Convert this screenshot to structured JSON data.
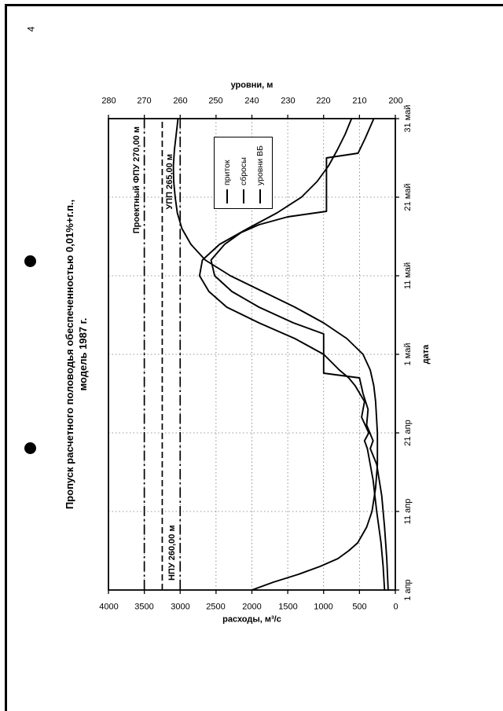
{
  "page": {
    "number": "4"
  },
  "chart": {
    "title_line1": "Пропуск расчетного половодья обеспеченностью 0,01%+г.п.,",
    "title_line2": "модель 1987 г.",
    "left_axis_title": "расходы, м³/с",
    "right_axis_title": "уровни, м",
    "x_axis_title": "дата"
  },
  "chart_data": {
    "type": "line",
    "title": "Пропуск расчетного половодья обеспеченностью 0,01%+г.п., модель 1987 г.",
    "xlabel": "дата",
    "x_ticks": [
      "1 апр",
      "11 апр",
      "21 апр",
      "1 май",
      "11 май",
      "21 май",
      "31 май"
    ],
    "x_tick_days": [
      0,
      10,
      20,
      30,
      40,
      50,
      60
    ],
    "x_range": [
      0,
      60
    ],
    "y_left": {
      "label": "расходы, м³/с",
      "range": [
        0,
        4000
      ],
      "step": 500
    },
    "y_right": {
      "label": "уровни, м",
      "range": [
        200,
        280
      ],
      "step": 10
    },
    "grid": "dotted",
    "legend_position": "inside-right-center",
    "orientation_note": "chart printed rotated 90° on portrait page",
    "reference_lines": [
      {
        "id": "fpu",
        "label": "Проектный ФПУ 270,00 м",
        "level": 270,
        "style": "dashdot",
        "label_align": "right",
        "label_pos": "above",
        "label_inset": 10
      },
      {
        "id": "upp",
        "label": "УПП 265,00 м",
        "level": 265,
        "style": "dashed",
        "label_align": "right",
        "label_pos": "below",
        "label_inset": 45
      },
      {
        "id": "npu",
        "label": "НПУ 260,00 м",
        "level": 260,
        "style": "dashdot",
        "label_align": "left",
        "label_pos": "above",
        "label_inset": 12
      }
    ],
    "series": [
      {
        "id": "pritok",
        "name": "приток",
        "axis": "left",
        "points": [
          [
            0,
            150
          ],
          [
            3,
            170
          ],
          [
            6,
            200
          ],
          [
            10,
            260
          ],
          [
            14,
            310
          ],
          [
            18,
            390
          ],
          [
            19,
            430
          ],
          [
            20,
            370
          ],
          [
            22,
            470
          ],
          [
            24,
            430
          ],
          [
            26,
            560
          ],
          [
            27,
            650
          ],
          [
            28,
            780
          ],
          [
            30,
            1000
          ],
          [
            32,
            1400
          ],
          [
            34,
            1900
          ],
          [
            36,
            2350
          ],
          [
            38,
            2600
          ],
          [
            40,
            2730
          ],
          [
            42,
            2690
          ],
          [
            44,
            2450
          ],
          [
            46,
            2060
          ],
          [
            48,
            1650
          ],
          [
            50,
            1310
          ],
          [
            52,
            1090
          ],
          [
            54,
            930
          ],
          [
            56,
            810
          ],
          [
            58,
            700
          ],
          [
            60,
            610
          ]
        ]
      },
      {
        "id": "sbrosy",
        "name": "сбросы",
        "axis": "left",
        "points": [
          [
            0,
            100
          ],
          [
            4,
            120
          ],
          [
            8,
            150
          ],
          [
            12,
            190
          ],
          [
            16,
            260
          ],
          [
            18,
            350
          ],
          [
            19,
            310
          ],
          [
            21,
            400
          ],
          [
            23,
            380
          ],
          [
            25,
            450
          ],
          [
            27,
            500
          ],
          [
            27.6,
            1000
          ],
          [
            32.6,
            1000
          ],
          [
            34,
            1420
          ],
          [
            36,
            1900
          ],
          [
            38,
            2280
          ],
          [
            40,
            2520
          ],
          [
            42,
            2570
          ],
          [
            44,
            2380
          ],
          [
            45.5,
            2150
          ],
          [
            46.5,
            1900
          ],
          [
            47.5,
            1500
          ],
          [
            48.2,
            960
          ],
          [
            55,
            960
          ],
          [
            55.6,
            520
          ],
          [
            57.5,
            420
          ],
          [
            60,
            300
          ]
        ]
      },
      {
        "id": "urovni-vb",
        "name": "уровни ВБ",
        "axis": "right",
        "points": [
          [
            0,
            240
          ],
          [
            1,
            234
          ],
          [
            2,
            227
          ],
          [
            3,
            221
          ],
          [
            4,
            216
          ],
          [
            5,
            213
          ],
          [
            6,
            210.5
          ],
          [
            8,
            208
          ],
          [
            10,
            206.5
          ],
          [
            13,
            205.5
          ],
          [
            16,
            205
          ],
          [
            20,
            205
          ],
          [
            24,
            205.5
          ],
          [
            26,
            206
          ],
          [
            28,
            207
          ],
          [
            30,
            209
          ],
          [
            32,
            213.5
          ],
          [
            34,
            220
          ],
          [
            36,
            228
          ],
          [
            38,
            237
          ],
          [
            40,
            246
          ],
          [
            42,
            253
          ],
          [
            44,
            257
          ],
          [
            46,
            259.5
          ],
          [
            48,
            260.8
          ],
          [
            50,
            261.4
          ],
          [
            52,
            261.8
          ],
          [
            54,
            261.9
          ],
          [
            56,
            261.6
          ],
          [
            58,
            261.1
          ],
          [
            60,
            260.6
          ]
        ]
      }
    ]
  }
}
